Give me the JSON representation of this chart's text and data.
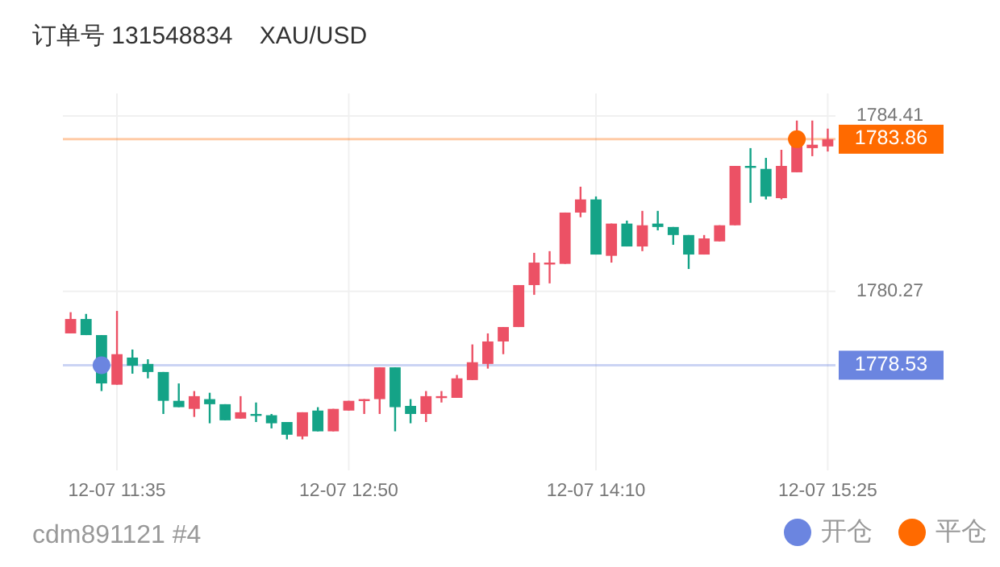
{
  "chart_data": {
    "type": "candlestick",
    "title": "订单号 131548834    XAU/USD",
    "categories": [
      null,
      null,
      null,
      "12-07 11:35",
      null,
      null,
      null,
      null,
      null,
      null,
      null,
      null,
      null,
      null,
      null,
      null,
      null,
      null,
      "12-07 12:50",
      null,
      null,
      null,
      null,
      null,
      null,
      null,
      null,
      null,
      null,
      null,
      null,
      null,
      null,
      null,
      "12-07 14:10",
      null,
      null,
      null,
      null,
      null,
      null,
      null,
      null,
      null,
      null,
      null,
      null,
      null,
      null,
      "12-07 15:25"
    ],
    "ohlc": [
      [
        1779.28,
        1779.78,
        1779.28,
        1779.62
      ],
      [
        1779.62,
        1779.74,
        1779.24,
        1779.24
      ],
      [
        1779.24,
        1779.24,
        1777.92,
        1778.1
      ],
      [
        1778.07,
        1779.81,
        1778.07,
        1778.79
      ],
      [
        1778.71,
        1778.9,
        1778.33,
        1778.52
      ],
      [
        1778.56,
        1778.67,
        1778.22,
        1778.37
      ],
      [
        1778.37,
        1778.37,
        1777.38,
        1777.69
      ],
      [
        1777.69,
        1778.1,
        1777.54,
        1777.54
      ],
      [
        1777.5,
        1777.92,
        1777.31,
        1777.8
      ],
      [
        1777.73,
        1777.88,
        1777.16,
        1777.61
      ],
      [
        1777.61,
        1777.61,
        1777.23,
        1777.23
      ],
      [
        1777.27,
        1777.8,
        1777.27,
        1777.42
      ],
      [
        1777.38,
        1777.65,
        1777.19,
        1777.35
      ],
      [
        1777.35,
        1777.38,
        1777.04,
        1777.16
      ],
      [
        1777.19,
        1777.19,
        1776.78,
        1776.89
      ],
      [
        1776.85,
        1777.42,
        1776.78,
        1777.42
      ],
      [
        1777.46,
        1777.54,
        1776.97,
        1776.97
      ],
      [
        1776.97,
        1777.5,
        1776.97,
        1777.5
      ],
      [
        1777.46,
        1777.69,
        1777.46,
        1777.69
      ],
      [
        1777.69,
        1777.73,
        1777.38,
        1777.73
      ],
      [
        1777.73,
        1778.48,
        1777.38,
        1778.48
      ],
      [
        1778.48,
        1778.48,
        1776.97,
        1777.54
      ],
      [
        1777.57,
        1777.73,
        1777.16,
        1777.38
      ],
      [
        1777.38,
        1777.92,
        1777.19,
        1777.8
      ],
      [
        1777.76,
        1777.92,
        1777.65,
        1777.8
      ],
      [
        1777.76,
        1778.3,
        1777.76,
        1778.22
      ],
      [
        1778.18,
        1779.02,
        1778.18,
        1778.6
      ],
      [
        1778.56,
        1779.28,
        1778.45,
        1779.09
      ],
      [
        1779.09,
        1779.43,
        1778.79,
        1779.43
      ],
      [
        1779.43,
        1780.42,
        1779.43,
        1780.42
      ],
      [
        1780.42,
        1781.18,
        1780.19,
        1780.95
      ],
      [
        1780.92,
        1781.22,
        1780.46,
        1780.95
      ],
      [
        1780.92,
        1782.13,
        1780.92,
        1782.13
      ],
      [
        1782.13,
        1782.74,
        1782.02,
        1782.44
      ],
      [
        1782.44,
        1782.51,
        1781.14,
        1781.14
      ],
      [
        1781.11,
        1781.87,
        1780.95,
        1781.87
      ],
      [
        1781.87,
        1781.94,
        1781.33,
        1781.33
      ],
      [
        1781.33,
        1782.17,
        1781.22,
        1781.83
      ],
      [
        1781.87,
        1782.17,
        1781.71,
        1781.79
      ],
      [
        1781.79,
        1781.79,
        1781.37,
        1781.6
      ],
      [
        1781.6,
        1781.6,
        1780.8,
        1781.14
      ],
      [
        1781.14,
        1781.6,
        1781.14,
        1781.52
      ],
      [
        1781.45,
        1781.83,
        1781.45,
        1781.83
      ],
      [
        1781.83,
        1783.23,
        1781.83,
        1783.23
      ],
      [
        1783.23,
        1783.65,
        1782.36,
        1783.2
      ],
      [
        1783.16,
        1783.42,
        1782.44,
        1782.51
      ],
      [
        1782.47,
        1783.61,
        1782.44,
        1783.23
      ],
      [
        1783.08,
        1784.3,
        1783.08,
        1783.76
      ],
      [
        1783.65,
        1784.3,
        1783.46,
        1783.73
      ],
      [
        1783.69,
        1784.11,
        1783.57,
        1783.86
      ]
    ],
    "colors": [
      "#ec5165",
      "#14a387",
      "#14a387",
      "#ec5165",
      "#14a387",
      "#14a387",
      "#14a387",
      "#14a387",
      "#ec5165",
      "#14a387",
      "#14a387",
      "#ec5165",
      "#14a387",
      "#14a387",
      "#14a387",
      "#ec5165",
      "#14a387",
      "#ec5165",
      "#ec5165",
      "#ec5165",
      "#ec5165",
      "#14a387",
      "#14a387",
      "#ec5165",
      "#ec5165",
      "#ec5165",
      "#ec5165",
      "#ec5165",
      "#ec5165",
      "#ec5165",
      "#ec5165",
      "#ec5165",
      "#ec5165",
      "#ec5165",
      "#14a387",
      "#ec5165",
      "#14a387",
      "#ec5165",
      "#14a387",
      "#14a387",
      "#14a387",
      "#ec5165",
      "#ec5165",
      "#ec5165",
      "#14a387",
      "#14a387",
      "#ec5165",
      "#ec5165",
      "#ec5165",
      "#ec5165"
    ],
    "series": [
      {
        "name": "开仓",
        "type": "scatter",
        "color": "#6b85e0",
        "values": [
          null,
          null,
          1778.53,
          null,
          null,
          null,
          null,
          null,
          null,
          null,
          null,
          null,
          null,
          null,
          null,
          null,
          null,
          null,
          null,
          null,
          null,
          null,
          null,
          null,
          null,
          null,
          null,
          null,
          null,
          null,
          null,
          null,
          null,
          null,
          null,
          null,
          null,
          null,
          null,
          null,
          null,
          null,
          null,
          null,
          null,
          null,
          null,
          null,
          null,
          null
        ]
      },
      {
        "name": "平仓",
        "type": "scatter",
        "color": "#ff6a00",
        "values": [
          null,
          null,
          null,
          null,
          null,
          null,
          null,
          null,
          null,
          null,
          null,
          null,
          null,
          null,
          null,
          null,
          null,
          null,
          null,
          null,
          null,
          null,
          null,
          null,
          null,
          null,
          null,
          null,
          null,
          null,
          null,
          null,
          null,
          null,
          null,
          null,
          null,
          null,
          null,
          null,
          null,
          null,
          null,
          null,
          null,
          null,
          null,
          1783.86,
          null,
          null
        ]
      }
    ],
    "ylim": [
      1776.05,
      1784.94
    ],
    "yticks": [
      1784.41,
      1780.27
    ],
    "ref_lines": [
      {
        "axis": "y",
        "value": 1783.86,
        "label": "1783.86",
        "color": "#ff6a00"
      },
      {
        "axis": "y",
        "value": 1778.53,
        "label": "1778.53",
        "color": "#6b85e0"
      }
    ],
    "grid": true,
    "legend": "bottom right",
    "marker": "circle",
    "annotations": [
      "cdm891121 #4"
    ]
  }
}
